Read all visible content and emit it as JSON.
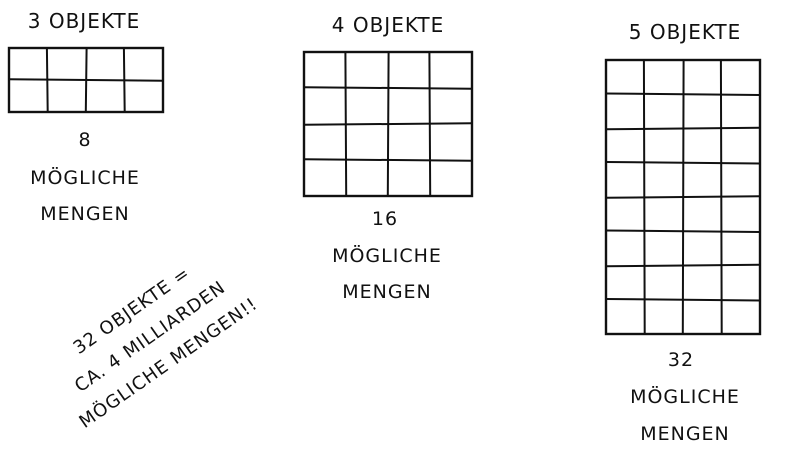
{
  "panels": [
    {
      "key": "three",
      "title": "3 OBJEKTE",
      "rows": 2,
      "cols": 4,
      "count": "8",
      "caption_line1": "MÖGLICHE",
      "caption_line2": "MENGEN"
    },
    {
      "key": "four",
      "title": "4 OBJEKTE",
      "rows": 4,
      "cols": 4,
      "count": "16",
      "caption_line1": "MÖGLICHE",
      "caption_line2": "MENGEN"
    },
    {
      "key": "five",
      "title": "5 OBJEKTE",
      "rows": 8,
      "cols": 4,
      "count": "32",
      "caption_line1": "MÖGLICHE",
      "caption_line2": "MENGEN"
    }
  ],
  "note": {
    "line1": "32 OBJEKTE =",
    "line2": "CA. 4 MILLIARDEN",
    "line3": "MÖGLICHE MENGEN!!"
  },
  "colors": {
    "ink": "#111111",
    "background": "#ffffff"
  }
}
